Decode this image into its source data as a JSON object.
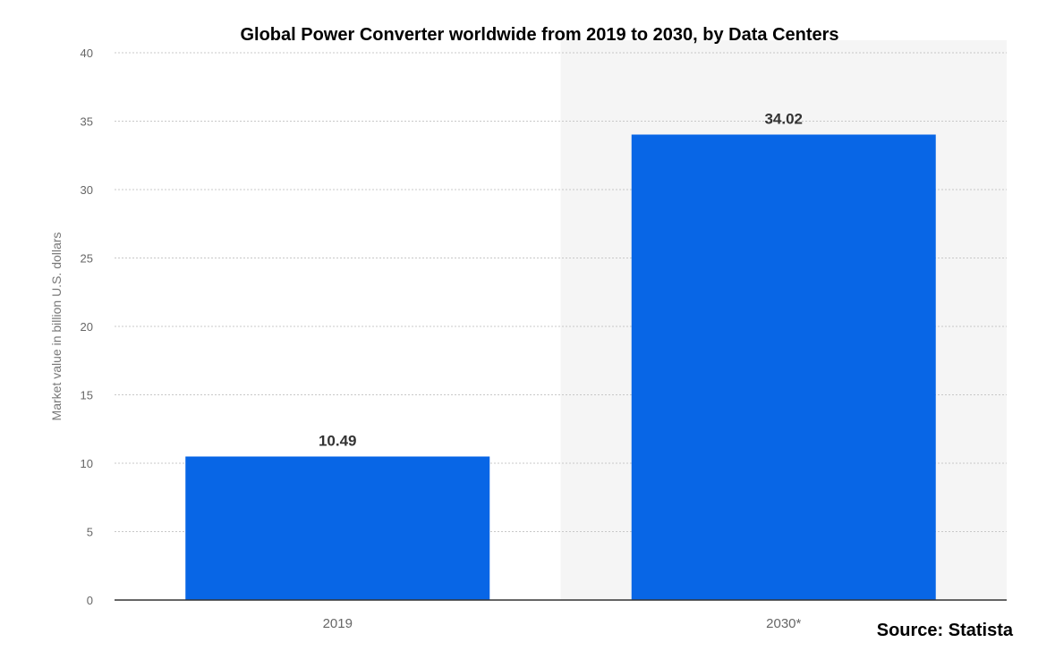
{
  "chart_data": {
    "type": "bar",
    "title": "Global Power Converter worldwide from 2019 to 2030, by Data Centers",
    "ylabel": "Market value in billion U.S. dollars",
    "xlabel": "",
    "categories": [
      "2019",
      "2030*"
    ],
    "values": [
      10.49,
      34.02
    ],
    "value_labels": [
      "10.49",
      "34.02"
    ],
    "ylim": [
      0,
      40
    ],
    "yticks": [
      0,
      5,
      10,
      15,
      20,
      25,
      30,
      35,
      40
    ],
    "grid": true,
    "highlight_category": "2030*",
    "colors": {
      "bar": "#0866e6",
      "grid": "#c8c8c8",
      "axis": "#333333",
      "tick_text": "#666666",
      "highlight_bg": "#f5f5f5"
    },
    "source": "Source: Statista"
  }
}
